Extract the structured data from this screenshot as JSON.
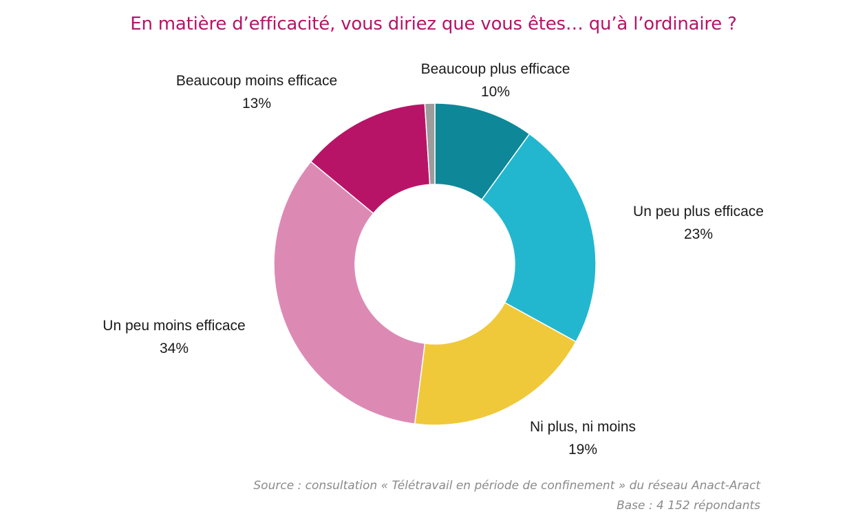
{
  "chart_data": {
    "type": "pie",
    "title": "En matière d’efficacité, vous diriez que vous êtes… qu’à l’ordinaire ?",
    "slices": [
      {
        "label": "Beaucoup plus efficace",
        "value": 10,
        "value_label": "10%",
        "color": "#0e8799"
      },
      {
        "label": "Un peu plus efficace",
        "value": 23,
        "value_label": "23%",
        "color": "#23b7cf"
      },
      {
        "label": "Ni plus, ni moins",
        "value": 19,
        "value_label": "19%",
        "color": "#f0c93a"
      },
      {
        "label": "Un peu moins efficace",
        "value": 34,
        "value_label": "34%",
        "color": "#dc8ab4"
      },
      {
        "label": "Beaucoup moins efficace",
        "value": 13,
        "value_label": "13%",
        "color": "#b81467"
      },
      {
        "label": "",
        "value": 1,
        "value_label": "",
        "color": "#9c9c9c"
      }
    ]
  },
  "footer": {
    "source": "Source : consultation « Télétravail en période de confinement » du réseau Anact-Aract",
    "base": "Base : 4 152 répondants"
  },
  "colors": {
    "title": "#b51467",
    "source": "#8a8a8a"
  }
}
